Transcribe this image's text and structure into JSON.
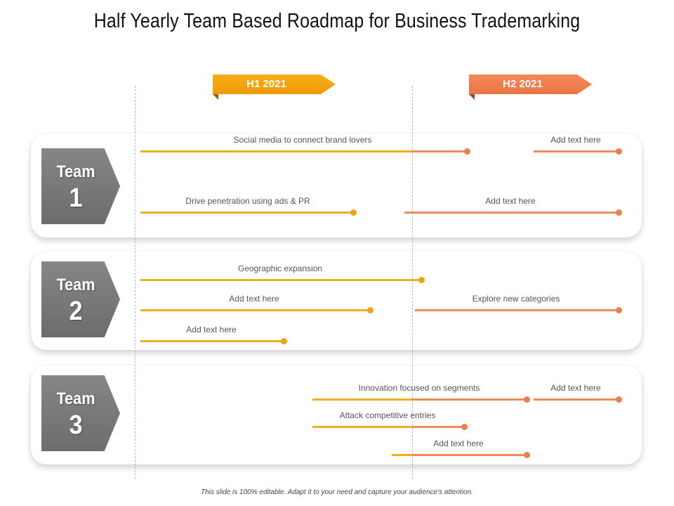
{
  "title": "Half Yearly Team Based Roadmap for Business Trademarking",
  "periods": [
    "H1 2021",
    "H2 2021"
  ],
  "teams": [
    {
      "label": "Team",
      "number": "1"
    },
    {
      "label": "Team",
      "number": "2"
    },
    {
      "label": "Team",
      "number": "3"
    }
  ],
  "tasks": {
    "t1_a": "Social media to connect brand lovers",
    "t1_b": "Add text here",
    "t1_c": "Drive penetration using ads & PR",
    "t1_d": "Add text here",
    "t2_a": "Geographic expansion",
    "t2_b": "Add text here",
    "t2_c": "Explore new categories",
    "t2_d": "Add text here",
    "t3_a": "Innovation focused on segments",
    "t3_b": "Add text here",
    "t3_c": "Attack competitive entries",
    "t3_d": "Add text here"
  },
  "colors": {
    "h1": "#ee9b07",
    "h2": "#ea7645",
    "team_badge": "#777777"
  },
  "footer": "This slide is 100% editable. Adapt it to your need and capture your audience's attention."
}
